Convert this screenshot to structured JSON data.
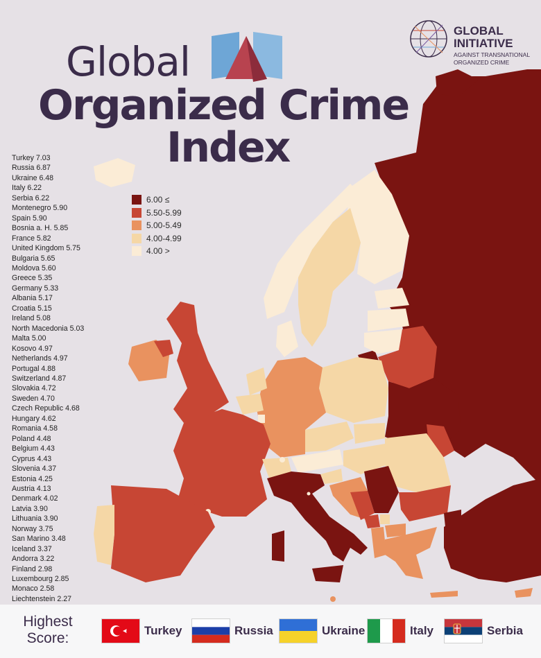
{
  "title": {
    "line1": "Global",
    "line2": "Organized Crime",
    "line3": "Index"
  },
  "organization": {
    "name_line1": "GLOBAL",
    "name_line2": "INITIATIVE",
    "tagline_line1": "AGAINST TRANSNATIONAL",
    "tagline_line2": "ORGANIZED CRIME"
  },
  "legend": [
    {
      "label": "6.00 ≤",
      "color": "#7a1411"
    },
    {
      "label": "5.50-5.99",
      "color": "#c74634"
    },
    {
      "label": "5.00-5.49",
      "color": "#e9925f"
    },
    {
      "label": "4.00-4.99",
      "color": "#f5d7a6"
    },
    {
      "label": "4.00 >",
      "color": "#fbecd6"
    }
  ],
  "ranking": [
    "Turkey 7.03",
    "Russia 6.87",
    "Ukraine 6.48",
    "Italy 6.22",
    "Serbia 6.22",
    "Montenegro 5.90",
    "Spain 5.90",
    "Bosnia a. H. 5.85",
    "France 5.82",
    "United Kingdom 5.75",
    "Bulgaria 5.65",
    "Moldova 5.60",
    "Greece 5.35",
    "Germany 5.33",
    "Albania 5.17",
    "Croatia 5.15",
    "Ireland 5.08",
    "North Macedonia 5.03",
    "Malta 5.00",
    "Kosovo 4.97",
    "Netherlands 4.97",
    "Portugal 4.88",
    "Switzerland 4.87",
    "Slovakia 4.72",
    "Sweden 4.70",
    "Czech Republic 4.68",
    "Hungary 4.62",
    "Romania 4.58",
    "Poland 4.48",
    "Belgium 4.43",
    "Cyprus 4.43",
    "Slovenia 4.37",
    "Estonia 4.25",
    "Austria 4.13",
    "Denmark 4.02",
    "Latvia 3.90",
    "Lithuania 3.90",
    "Norway 3.75",
    "San Marino 3.48",
    "Iceland 3.37",
    "Andorra 3.22",
    "Finland 2.98",
    "Luxembourg 2.85",
    "Monaco 2.58",
    "Liechtenstein 2.27"
  ],
  "footer": {
    "title_line1": "Highest",
    "title_line2": "Score:",
    "top": [
      {
        "name": "Turkey",
        "flag": "turkey"
      },
      {
        "name": "Russia",
        "flag": "russia"
      },
      {
        "name": "Ukraine",
        "flag": "ukraine"
      },
      {
        "name": "Italy",
        "flag": "italy"
      },
      {
        "name": "Serbia",
        "flag": "serbia"
      }
    ]
  },
  "colors": {
    "background": "#e6e1e6",
    "title": "#3b2c4a",
    "sea": "#e6e1e6"
  }
}
